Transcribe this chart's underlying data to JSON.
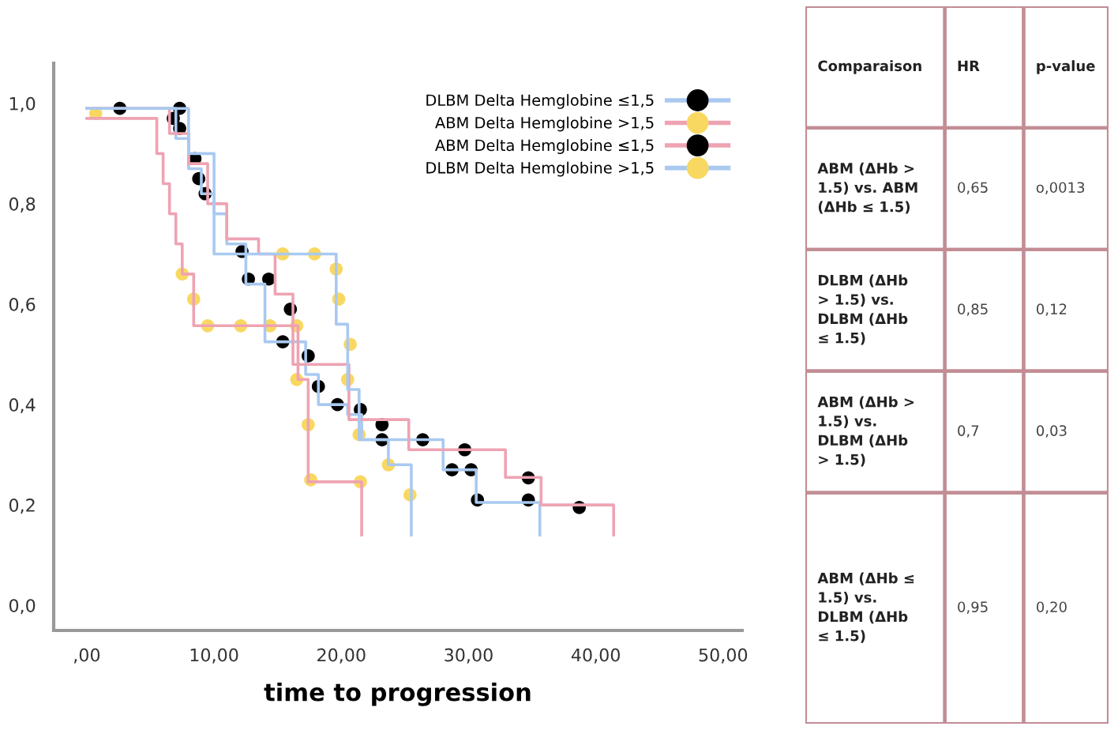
{
  "chart_data": [
    {
      "type": "step",
      "xlabel": "time to progression",
      "xlim": [
        -2.6,
        51.5
      ],
      "ylim": [
        -0.05,
        1.08
      ],
      "xticks": [
        {
          "value": 0,
          "label": ",00"
        },
        {
          "value": 10,
          "label": "10,00"
        },
        {
          "value": 20,
          "label": "20,00"
        },
        {
          "value": 30,
          "label": "30,00"
        },
        {
          "value": 40,
          "label": "40,00"
        },
        {
          "value": 50,
          "label": "50,00"
        }
      ],
      "yticks": [
        {
          "value": 0,
          "label": "0,0"
        },
        {
          "value": 0.2,
          "label": "0,2"
        },
        {
          "value": 0.4,
          "label": "0,4"
        },
        {
          "value": 0.6,
          "label": "0,6"
        },
        {
          "value": 0.8,
          "label": "0,8"
        },
        {
          "value": 1.0,
          "label": "1,0"
        }
      ],
      "grid": false,
      "legend": "top right",
      "series": [
        {
          "type": "step",
          "color": "#a9c9f0",
          "x": [
            0,
            7,
            8,
            9,
            10,
            11,
            12.5,
            14,
            17.2,
            18.2,
            20.5,
            21.6,
            28,
            30.6,
            35.6,
            35.6
          ],
          "values": [
            0.99,
            0.93,
            0.87,
            0.82,
            0.78,
            0.72,
            0.64,
            0.525,
            0.46,
            0.4,
            0.38,
            0.33,
            0.27,
            0.205,
            0.205,
            0.14
          ]
        },
        {
          "type": "step",
          "color": "#eea3b3",
          "x": [
            0,
            5.5,
            6,
            6.5,
            7,
            7.5,
            8.4,
            16.6,
            17.4,
            21.6,
            21.6
          ],
          "values": [
            0.97,
            0.9,
            0.84,
            0.78,
            0.72,
            0.66,
            0.557,
            0.45,
            0.246,
            0.246,
            0.14
          ]
        },
        {
          "type": "step",
          "color": "#eea3b3",
          "x": [
            0,
            6.5,
            8,
            9.5,
            11,
            13.5,
            14.8,
            16.2,
            20.6,
            25.3,
            32.9,
            35.7,
            41.4,
            41.4
          ],
          "values": [
            0.99,
            0.94,
            0.88,
            0.8,
            0.73,
            0.7,
            0.62,
            0.48,
            0.37,
            0.31,
            0.255,
            0.2,
            0.2,
            0.14
          ]
        },
        {
          "type": "step",
          "color": "#a9c9f0",
          "x": [
            0,
            8,
            10,
            19.6,
            20.5,
            21.4,
            23.7,
            25.5,
            25.5
          ],
          "values": [
            0.99,
            0.9,
            0.7,
            0.56,
            0.43,
            0.33,
            0.28,
            0.28,
            0.14
          ]
        },
        {
          "type": "scatter",
          "name": "DLBM Delta Hemglobine ≤1,5",
          "color": "#000000",
          "marker": "circle",
          "x": [
            7.3,
            8.5,
            8.8,
            9.3,
            12.7,
            15.4,
            18.2,
            19.7,
            21.5,
            23.2,
            26.4,
            28.7,
            30.2,
            30.7,
            34.7
          ],
          "values": [
            0.95,
            0.89,
            0.85,
            0.82,
            0.65,
            0.525,
            0.436,
            0.4,
            0.39,
            0.33,
            0.33,
            0.27,
            0.27,
            0.21,
            0.21
          ]
        },
        {
          "type": "scatter",
          "name": "ABM Delta Hemglobine >1,5",
          "color": "#f9d862",
          "marker": "circle",
          "x": [
            0.7,
            7.5,
            8.4,
            9.5,
            12.1,
            14.4,
            16.5,
            16.5,
            17.4,
            17.6,
            21.5
          ],
          "values": [
            0.98,
            0.66,
            0.61,
            0.557,
            0.557,
            0.557,
            0.557,
            0.45,
            0.36,
            0.25,
            0.246
          ]
        },
        {
          "type": "scatter",
          "name": "ABM Delta Hemglobine ≤1,5",
          "color": "#000000",
          "marker": "circle",
          "x": [
            2.6,
            7.3,
            6.8,
            12.2,
            14.3,
            16.0,
            17.4,
            23.2,
            29.7,
            34.7,
            38.7
          ],
          "values": [
            0.99,
            0.99,
            0.97,
            0.705,
            0.65,
            0.59,
            0.497,
            0.36,
            0.31,
            0.254,
            0.195
          ]
        },
        {
          "type": "scatter",
          "name": "DLBM Delta Hemglobine >1,5",
          "color": "#f9d862",
          "marker": "circle",
          "x": [
            15.4,
            17.9,
            19.6,
            19.8,
            20.7,
            20.5,
            21.4,
            23.7,
            25.4
          ],
          "values": [
            0.7,
            0.7,
            0.67,
            0.61,
            0.52,
            0.45,
            0.34,
            0.28,
            0.22
          ]
        }
      ]
    },
    {
      "type": "other",
      "annotations": [
        "Comparaison",
        "HR",
        "p-value",
        "ABM (ΔHb >\n1.5) vs. ABM\n(ΔHb ≤ 1.5)",
        "0,65",
        "o,0013",
        "DLBM (ΔHb\n> 1.5) vs.\nDLBM (ΔHb\n≤ 1.5)",
        "0,85",
        "0,12",
        "ABM (ΔHb >\n1.5) vs.\nDLBM (ΔHb\n> 1.5)",
        "0,7",
        "0,03",
        "ABM (ΔHb ≤\n1.5) vs.\nDLBM (ΔHb\n≤ 1.5)",
        "0,95",
        "0,20"
      ]
    }
  ]
}
